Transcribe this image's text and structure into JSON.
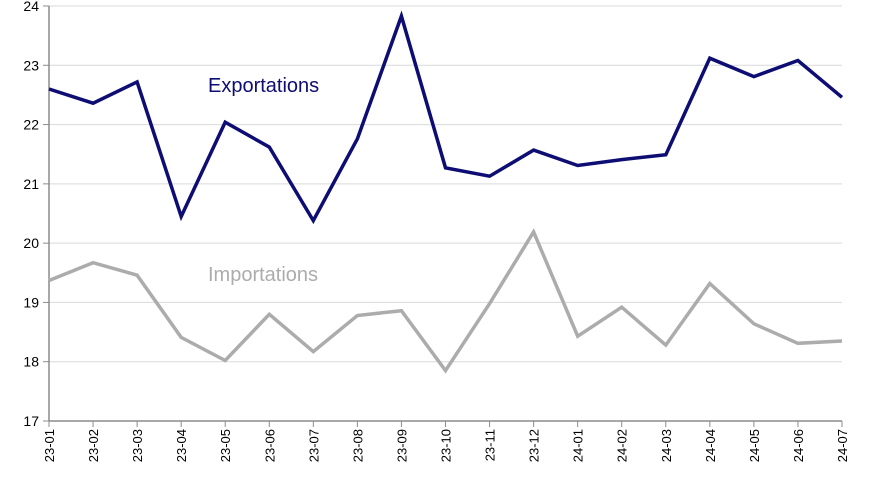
{
  "chart_data": {
    "type": "line",
    "title": "",
    "xlabel": "",
    "ylabel": "",
    "ylim": [
      17,
      24
    ],
    "yticks": [
      "17",
      "18",
      "19",
      "20",
      "21",
      "22",
      "23",
      "24"
    ],
    "grid": true,
    "categories": [
      "23-01",
      "23-02",
      "23-03",
      "23-04",
      "23-05",
      "23-06",
      "23-07",
      "23-08",
      "23-09",
      "23-10",
      "23-11",
      "23-12",
      "24-01",
      "24-02",
      "24-03",
      "24-04",
      "24-05",
      "24-06",
      "24-07"
    ],
    "series": [
      {
        "name": "Exportations",
        "color": "#0d0d73",
        "values": [
          22.6,
          22.36,
          22.72,
          20.45,
          22.04,
          21.62,
          20.38,
          21.76,
          23.83,
          21.27,
          21.13,
          21.57,
          21.31,
          21.41,
          21.49,
          23.12,
          22.81,
          23.08,
          22.46
        ]
      },
      {
        "name": "Importations",
        "color": "#acacac",
        "values": [
          19.37,
          19.67,
          19.46,
          18.41,
          18.02,
          18.8,
          18.17,
          18.78,
          18.86,
          17.85,
          18.98,
          20.19,
          18.43,
          18.92,
          18.28,
          19.32,
          18.64,
          18.31,
          18.35
        ]
      }
    ]
  }
}
